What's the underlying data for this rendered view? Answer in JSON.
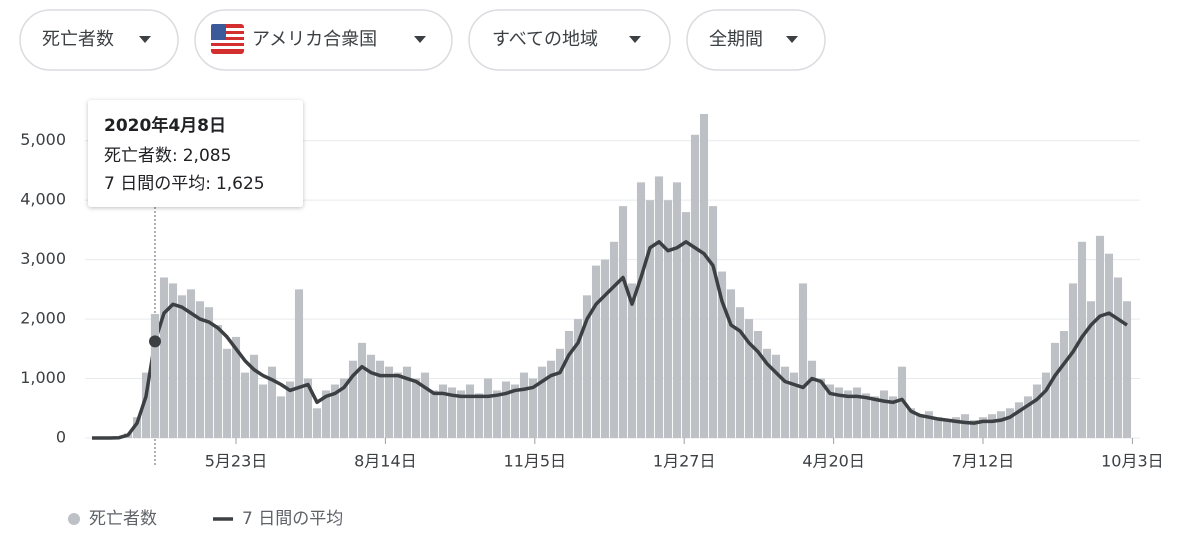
{
  "filters": [
    {
      "label": "死亡者数"
    },
    {
      "label": "アメリカ合衆国"
    },
    {
      "label": "すべての地域"
    },
    {
      "label": "全期間"
    }
  ],
  "chart_data": {
    "type": "bar_line",
    "x": [
      0,
      5,
      10,
      15,
      20,
      25,
      30,
      35,
      40,
      45,
      50,
      55,
      60,
      65,
      70,
      75,
      80,
      85,
      90,
      95,
      100,
      105,
      110,
      115,
      120,
      125,
      130,
      135,
      140,
      145,
      150,
      155,
      160,
      165,
      170,
      175,
      180,
      185,
      190,
      195,
      200,
      205,
      210,
      215,
      220,
      225,
      230,
      235,
      240,
      245,
      250,
      255,
      260,
      265,
      270,
      275,
      280,
      285,
      290,
      295,
      300,
      305,
      310,
      315,
      320,
      325,
      330,
      335,
      340,
      345,
      350,
      355,
      360,
      365,
      370,
      375,
      380,
      385,
      390,
      395,
      400,
      405,
      410,
      415,
      420,
      425,
      430,
      435,
      440,
      445,
      450,
      455,
      460,
      465,
      470,
      475,
      480,
      485,
      490,
      495,
      500,
      505,
      510,
      515,
      520,
      525,
      530,
      535,
      540,
      545,
      550,
      555,
      560,
      565,
      570,
      575
    ],
    "xlim": [
      0,
      580
    ],
    "xticks": [
      {
        "value": 80,
        "label": "5月23日"
      },
      {
        "value": 163,
        "label": "8月14日"
      },
      {
        "value": 246,
        "label": "11月5日"
      },
      {
        "value": 329,
        "label": "1月27日"
      },
      {
        "value": 412,
        "label": "4月20日"
      },
      {
        "value": 495,
        "label": "7月12日"
      },
      {
        "value": 578,
        "label": "10月3日"
      }
    ],
    "ylim": [
      0,
      5500
    ],
    "yticks": [
      0,
      {
        "value": 1000,
        "label": "1,000"
      },
      {
        "value": 2000,
        "label": "2,000"
      },
      {
        "value": 3000,
        "label": "3,000"
      },
      {
        "value": 4000,
        "label": "4,000"
      },
      {
        "value": 5000,
        "label": "5,000"
      }
    ],
    "grid": true,
    "series": [
      {
        "name": "死亡者数",
        "color": "#bdc1c6",
        "mark": "bar",
        "values": [
          0,
          0,
          0,
          10,
          80,
          350,
          1100,
          2085,
          2700,
          2600,
          2400,
          2500,
          2300,
          2200,
          1900,
          1500,
          1700,
          1100,
          1400,
          900,
          1200,
          700,
          950,
          2500,
          1000,
          500,
          800,
          900,
          1000,
          1300,
          1600,
          1400,
          1300,
          1200,
          1100,
          1200,
          1000,
          1100,
          800,
          900,
          850,
          800,
          900,
          750,
          1000,
          800,
          950,
          900,
          1100,
          1000,
          1200,
          1300,
          1500,
          1800,
          2000,
          2400,
          2900,
          3000,
          3300,
          3900,
          2600,
          4300,
          4000,
          4400,
          4000,
          4300,
          3800,
          5100,
          5450,
          3900,
          2800,
          2500,
          2200,
          2000,
          1800,
          1500,
          1400,
          1200,
          1100,
          2600,
          1300,
          1000,
          900,
          850,
          800,
          850,
          750,
          700,
          800,
          700,
          1200,
          500,
          400,
          450,
          350,
          300,
          350,
          400,
          300,
          350,
          400,
          450,
          500,
          600,
          700,
          900,
          1100,
          1600,
          1800,
          2600,
          3300,
          2300,
          3400,
          3100,
          2700,
          2300
        ]
      },
      {
        "name": "7 日間の平均",
        "color": "#3c4043",
        "mark": "line",
        "values": [
          0,
          0,
          0,
          5,
          50,
          250,
          700,
          1625,
          2100,
          2250,
          2200,
          2100,
          2000,
          1950,
          1850,
          1700,
          1500,
          1300,
          1150,
          1050,
          980,
          900,
          800,
          850,
          900,
          600,
          700,
          750,
          850,
          1050,
          1200,
          1100,
          1050,
          1050,
          1050,
          1000,
          950,
          850,
          750,
          750,
          720,
          700,
          700,
          700,
          700,
          720,
          750,
          800,
          820,
          850,
          950,
          1050,
          1100,
          1400,
          1600,
          2000,
          2250,
          2400,
          2550,
          2700,
          2250,
          2700,
          3200,
          3300,
          3150,
          3200,
          3300,
          3200,
          3100,
          2900,
          2300,
          1900,
          1800,
          1600,
          1450,
          1250,
          1100,
          950,
          900,
          850,
          1000,
          950,
          750,
          720,
          700,
          700,
          680,
          650,
          620,
          600,
          650,
          450,
          380,
          350,
          320,
          300,
          280,
          260,
          250,
          280,
          280,
          300,
          350,
          450,
          550,
          650,
          800,
          1050,
          1250,
          1450,
          1700,
          1900,
          2050,
          2100,
          2000,
          1900
        ]
      }
    ],
    "tooltip": {
      "date": "2020年4月8日",
      "x": 35,
      "lines": [
        {
          "label": "死亡者数:",
          "value": 2085,
          "value_label": "2,085"
        },
        {
          "label": "7 日間の平均:",
          "value": 1625,
          "value_label": "1,625"
        }
      ]
    }
  }
}
